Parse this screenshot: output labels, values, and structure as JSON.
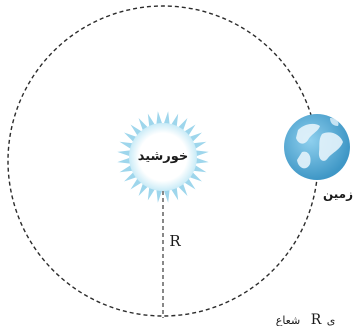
{
  "labels": {
    "sun": "خورشید",
    "earth": "زمین",
    "radius": "R",
    "bottom_fragment_symbol": "R",
    "bottom_fragment_text": "شعاع",
    "bottom_fragment_text2": "ی"
  },
  "colors": {
    "orbit_line": "#2b2b2b",
    "radius_line": "#3a3a3a",
    "sun_rays": "#9ed6ec",
    "sun_glow_inner": "#ffffff",
    "sun_glow_outer": "#c9ebf7",
    "earth_ocean": "#5fb0d8",
    "earth_land": "#e4f3fb",
    "text": "#1a1a1a"
  },
  "icons": {
    "sun": "sun-icon",
    "earth": "earth-globe-icon"
  }
}
